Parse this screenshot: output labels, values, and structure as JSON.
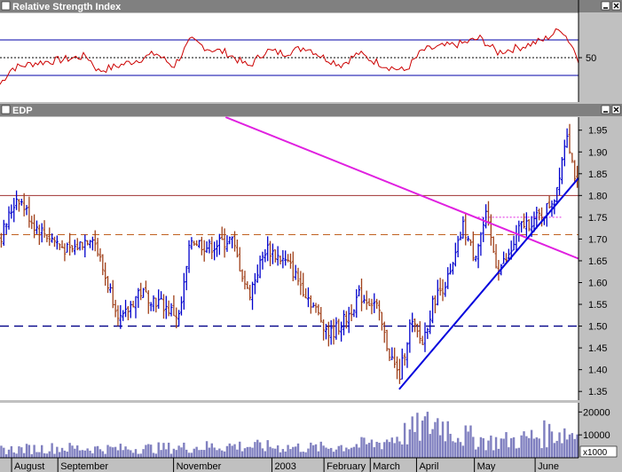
{
  "panels": {
    "rsi": {
      "title": "Relative Strength Index",
      "ticks": [
        {
          "value": 50,
          "label": "50"
        }
      ],
      "ylim": [
        0,
        100
      ],
      "levels": [
        {
          "value": 70,
          "style": "solid"
        },
        {
          "value": 30,
          "style": "solid"
        },
        {
          "value": 50,
          "style": "dotted"
        }
      ]
    },
    "price": {
      "title": "EDP",
      "ticks": [
        {
          "value": 1.95,
          "label": "1.95"
        },
        {
          "value": 1.9,
          "label": "1.90"
        },
        {
          "value": 1.85,
          "label": "1.85"
        },
        {
          "value": 1.8,
          "label": "1.80"
        },
        {
          "value": 1.75,
          "label": "1.75"
        },
        {
          "value": 1.7,
          "label": "1.70"
        },
        {
          "value": 1.65,
          "label": "1.65"
        },
        {
          "value": 1.6,
          "label": "1.60"
        },
        {
          "value": 1.55,
          "label": "1.55"
        },
        {
          "value": 1.5,
          "label": "1.50"
        },
        {
          "value": 1.45,
          "label": "1.45"
        },
        {
          "value": 1.4,
          "label": "1.40"
        },
        {
          "value": 1.35,
          "label": "1.35"
        }
      ]
    },
    "volume": {
      "ticks": [
        {
          "value": 20000,
          "label": "20000"
        },
        {
          "value": 10000,
          "label": "10000"
        }
      ],
      "unit_label": "x1000"
    }
  },
  "x_axis": {
    "labels": [
      {
        "label": "August",
        "pos": 0.02
      },
      {
        "label": "September",
        "pos": 0.1
      },
      {
        "label": "November",
        "pos": 0.3
      },
      {
        "label": "2003",
        "pos": 0.47
      },
      {
        "label": "February",
        "pos": 0.56
      },
      {
        "label": "March",
        "pos": 0.64
      },
      {
        "label": "April",
        "pos": 0.72
      },
      {
        "label": "May",
        "pos": 0.82
      },
      {
        "label": "June",
        "pos": 0.925
      }
    ]
  },
  "colors": {
    "background": "#c0c0c0",
    "title_bar": "#808080",
    "rsi_line": "#cc0000",
    "up_bar": "#0000cc",
    "down_bar": "#a0401a",
    "magenta_trend": "#e020e0",
    "blue_trend": "#0000dd",
    "resistance_solid": "#a03030",
    "resistance_dashed": "#c06020",
    "support_dashed": "#000088",
    "volume_fill": "#8080c0"
  },
  "chart_data": {
    "type": "ohlc",
    "title": "EDP",
    "ylim": [
      1.33,
      1.98
    ],
    "key_points": [
      {
        "x": 0.0,
        "y": 1.7
      },
      {
        "x": 0.03,
        "y": 1.8
      },
      {
        "x": 0.06,
        "y": 1.73
      },
      {
        "x": 0.09,
        "y": 1.7
      },
      {
        "x": 0.12,
        "y": 1.67
      },
      {
        "x": 0.16,
        "y": 1.71
      },
      {
        "x": 0.18,
        "y": 1.62
      },
      {
        "x": 0.21,
        "y": 1.51
      },
      {
        "x": 0.24,
        "y": 1.58
      },
      {
        "x": 0.28,
        "y": 1.55
      },
      {
        "x": 0.31,
        "y": 1.52
      },
      {
        "x": 0.33,
        "y": 1.7
      },
      {
        "x": 0.36,
        "y": 1.68
      },
      {
        "x": 0.4,
        "y": 1.7
      },
      {
        "x": 0.43,
        "y": 1.57
      },
      {
        "x": 0.46,
        "y": 1.68
      },
      {
        "x": 0.5,
        "y": 1.64
      },
      {
        "x": 0.54,
        "y": 1.55
      },
      {
        "x": 0.57,
        "y": 1.48
      },
      {
        "x": 0.6,
        "y": 1.52
      },
      {
        "x": 0.62,
        "y": 1.57
      },
      {
        "x": 0.65,
        "y": 1.55
      },
      {
        "x": 0.67,
        "y": 1.45
      },
      {
        "x": 0.69,
        "y": 1.38
      },
      {
        "x": 0.71,
        "y": 1.51
      },
      {
        "x": 0.73,
        "y": 1.46
      },
      {
        "x": 0.75,
        "y": 1.56
      },
      {
        "x": 0.78,
        "y": 1.62
      },
      {
        "x": 0.8,
        "y": 1.73
      },
      {
        "x": 0.82,
        "y": 1.66
      },
      {
        "x": 0.84,
        "y": 1.75
      },
      {
        "x": 0.86,
        "y": 1.63
      },
      {
        "x": 0.88,
        "y": 1.66
      },
      {
        "x": 0.9,
        "y": 1.73
      },
      {
        "x": 0.92,
        "y": 1.74
      },
      {
        "x": 0.94,
        "y": 1.76
      },
      {
        "x": 0.96,
        "y": 1.8
      },
      {
        "x": 0.98,
        "y": 1.95
      },
      {
        "x": 0.99,
        "y": 1.87
      },
      {
        "x": 1.0,
        "y": 1.81
      }
    ],
    "annotations": [
      {
        "type": "trendline",
        "color": "magenta",
        "from": {
          "x": 0.39,
          "y": 1.98
        },
        "to": {
          "x": 1.0,
          "y": 1.655
        }
      },
      {
        "type": "trendline",
        "color": "blue",
        "from": {
          "x": 0.69,
          "y": 1.355
        },
        "to": {
          "x": 1.0,
          "y": 1.84
        }
      },
      {
        "type": "hline",
        "style": "solid",
        "value": 1.8
      },
      {
        "type": "hline",
        "style": "dashed",
        "value": 1.71
      },
      {
        "type": "hline",
        "style": "dotted",
        "value": 1.75,
        "from": 0.82,
        "to": 0.97
      },
      {
        "type": "hline",
        "style": "dashed",
        "value": 1.5
      }
    ],
    "rsi_key_points": [
      {
        "x": 0.0,
        "y": 20
      },
      {
        "x": 0.02,
        "y": 38
      },
      {
        "x": 0.06,
        "y": 44
      },
      {
        "x": 0.1,
        "y": 47
      },
      {
        "x": 0.15,
        "y": 52
      },
      {
        "x": 0.17,
        "y": 35
      },
      {
        "x": 0.2,
        "y": 40
      },
      {
        "x": 0.24,
        "y": 48
      },
      {
        "x": 0.27,
        "y": 55
      },
      {
        "x": 0.3,
        "y": 40
      },
      {
        "x": 0.33,
        "y": 70
      },
      {
        "x": 0.36,
        "y": 60
      },
      {
        "x": 0.39,
        "y": 56
      },
      {
        "x": 0.43,
        "y": 40
      },
      {
        "x": 0.46,
        "y": 58
      },
      {
        "x": 0.49,
        "y": 55
      },
      {
        "x": 0.53,
        "y": 62
      },
      {
        "x": 0.56,
        "y": 50
      },
      {
        "x": 0.59,
        "y": 42
      },
      {
        "x": 0.62,
        "y": 55
      },
      {
        "x": 0.64,
        "y": 48
      },
      {
        "x": 0.67,
        "y": 40
      },
      {
        "x": 0.7,
        "y": 35
      },
      {
        "x": 0.73,
        "y": 58
      },
      {
        "x": 0.76,
        "y": 62
      },
      {
        "x": 0.8,
        "y": 66
      },
      {
        "x": 0.83,
        "y": 72
      },
      {
        "x": 0.86,
        "y": 56
      },
      {
        "x": 0.9,
        "y": 62
      },
      {
        "x": 0.94,
        "y": 70
      },
      {
        "x": 0.97,
        "y": 83
      },
      {
        "x": 0.99,
        "y": 62
      },
      {
        "x": 1.0,
        "y": 48
      }
    ],
    "volume_key_points": [
      {
        "x": 0.0,
        "y": 4000
      },
      {
        "x": 0.1,
        "y": 5000
      },
      {
        "x": 0.2,
        "y": 4500
      },
      {
        "x": 0.3,
        "y": 5000
      },
      {
        "x": 0.4,
        "y": 6000
      },
      {
        "x": 0.47,
        "y": 5500
      },
      {
        "x": 0.55,
        "y": 5000
      },
      {
        "x": 0.65,
        "y": 7000
      },
      {
        "x": 0.72,
        "y": 14000
      },
      {
        "x": 0.76,
        "y": 18000
      },
      {
        "x": 0.8,
        "y": 11000
      },
      {
        "x": 0.85,
        "y": 8000
      },
      {
        "x": 0.9,
        "y": 9000
      },
      {
        "x": 0.96,
        "y": 13000
      },
      {
        "x": 1.0,
        "y": 12000
      }
    ]
  }
}
